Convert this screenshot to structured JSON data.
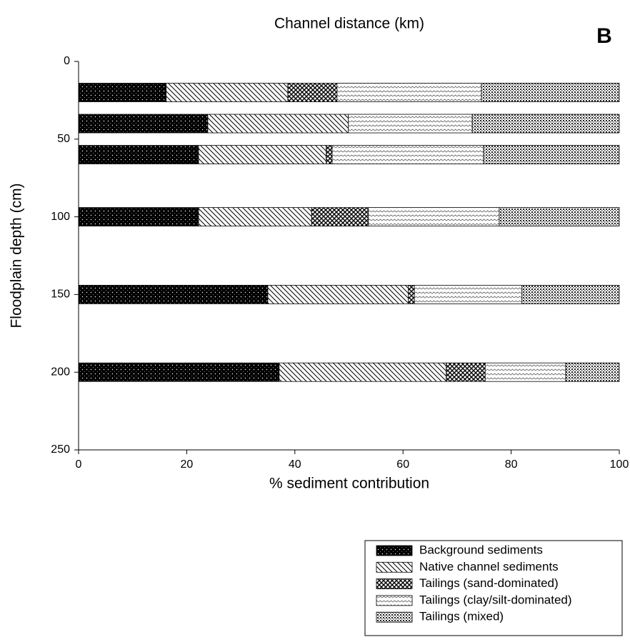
{
  "chart_data": {
    "type": "stacked-barh",
    "title": "Channel distance (km)",
    "panel_label": "B",
    "x_label": "% sediment contribution",
    "y_label": "Floodplain depth (cm)",
    "y": [
      20,
      40,
      60,
      100,
      150,
      200
    ],
    "xlim": [
      0,
      100
    ],
    "xticks": [
      0,
      20,
      40,
      60,
      80,
      100
    ],
    "ylim": [
      0,
      250
    ],
    "yticks": [
      0,
      50,
      100,
      150,
      200,
      250
    ],
    "y_inverted": true,
    "series": [
      {
        "name": "Background sediments",
        "values": [
          16.2,
          23.9,
          22.2,
          22.2,
          35.0,
          37.1
        ]
      },
      {
        "name": "Native channel sediments",
        "values": [
          22.5,
          26.0,
          23.6,
          20.9,
          26.0,
          30.9
        ]
      },
      {
        "name": "Tailings (sand-dominated)",
        "values": [
          9.1,
          0,
          1.1,
          10.5,
          1.1,
          7.2
        ]
      },
      {
        "name": "Tailings (clay/silt-dominated)",
        "values": [
          26.7,
          22.9,
          28.0,
          24.2,
          19.9,
          14.9
        ]
      },
      {
        "name": "Tailings (mixed)",
        "values": [
          25.5,
          27.2,
          25.1,
          22.2,
          18.0,
          9.9
        ]
      }
    ]
  }
}
